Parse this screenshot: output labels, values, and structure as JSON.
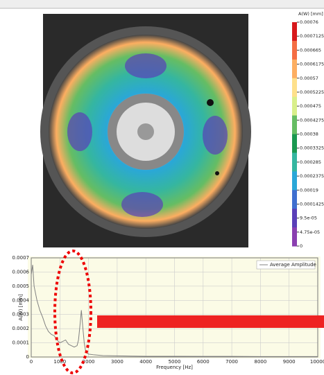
{
  "colorbar": {
    "title": "A(W) [mm]",
    "ticks": [
      0.00076,
      0.0007125,
      0.000665,
      0.0006175,
      0.00057,
      0.0005225,
      0.000475,
      0.0004275,
      0.00038,
      0.0003325,
      0.000285,
      0.0002375,
      0.00019,
      0.0001425,
      {
        "value": 9.5e-05,
        "label": "9.5e-05"
      },
      {
        "value": 4.75e-05,
        "label": "4.75e-05"
      },
      0
    ],
    "colors": [
      "#d7191c",
      "#f46d43",
      "#fdae61",
      "#fee08b",
      "#d9ef8b",
      "#66bd63",
      "#1a9850",
      "#35b6a0",
      "#2aa7d8",
      "#3f6fd0",
      "#5a3fb8",
      "#8a3fb0"
    ]
  },
  "chart_data": {
    "type": "line",
    "xlabel": "Frequency [Hz]",
    "ylabel": "A(W) [mm]",
    "x": [
      0,
      50,
      100,
      200,
      300,
      400,
      500,
      600,
      700,
      800,
      900,
      1000,
      1100,
      1200,
      1300,
      1400,
      1500,
      1600,
      1650,
      1700,
      1750,
      1800,
      1850,
      1900,
      2000,
      2200,
      2500,
      3000,
      3500,
      4000,
      5000,
      6000,
      7000,
      8000,
      9000,
      10000
    ],
    "series": [
      {
        "name": "Average Amplitude",
        "color": "#808080",
        "values": [
          0.00058,
          0.00065,
          0.0005,
          0.0004,
          0.00033,
          0.00028,
          0.00022,
          0.00018,
          0.00016,
          0.00015,
          0.00012,
          0.0001,
          0.00011,
          0.00012,
          9e-05,
          8e-05,
          7e-05,
          8e-05,
          0.00012,
          0.00022,
          0.00033,
          0.00021,
          0.0001,
          4e-05,
          2e-05,
          1.5e-05,
          1e-05,
          8e-06,
          6e-06,
          5e-06,
          5e-06,
          4e-06,
          4e-06,
          3e-06,
          3e-06,
          3e-06
        ]
      }
    ],
    "xlim": [
      0,
      10000
    ],
    "xticks": [
      0,
      1000,
      2000,
      3000,
      4000,
      5000,
      6000,
      7000,
      8000,
      9000,
      10000
    ],
    "ylim": [
      0,
      0.0007
    ],
    "yticks": [
      0,
      0.0001,
      0.0002,
      0.0003,
      0.0004,
      0.0005,
      0.0006,
      0.0007
    ],
    "grid": true
  }
}
